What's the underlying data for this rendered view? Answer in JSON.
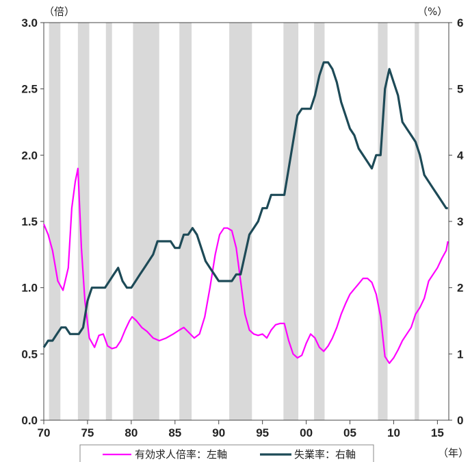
{
  "chart_data": {
    "type": "line",
    "left_unit": "（倍）",
    "right_unit": "（%）",
    "x_unit": "（年）",
    "x_range": [
      1970,
      2016.3
    ],
    "x_ticks": [
      {
        "year": 1970,
        "label": "70"
      },
      {
        "year": 1975,
        "label": "75"
      },
      {
        "year": 1980,
        "label": "80"
      },
      {
        "year": 1985,
        "label": "85"
      },
      {
        "year": 1990,
        "label": "90"
      },
      {
        "year": 1995,
        "label": "95"
      },
      {
        "year": 2000,
        "label": "00"
      },
      {
        "year": 2005,
        "label": "05"
      },
      {
        "year": 2010,
        "label": "10"
      },
      {
        "year": 2015,
        "label": "15"
      }
    ],
    "y_left": {
      "range": [
        0,
        3.0
      ],
      "ticks": [
        "0.0",
        "0.5",
        "1.0",
        "1.5",
        "2.0",
        "2.5",
        "3.0"
      ]
    },
    "y_right": {
      "range": [
        0,
        6
      ],
      "ticks": [
        "0",
        "1",
        "2",
        "3",
        "4",
        "5",
        "6"
      ]
    },
    "recessions": [
      [
        1970.6,
        1971.9
      ],
      [
        1973.9,
        1975.2
      ],
      [
        1977.1,
        1977.8
      ],
      [
        1980.2,
        1983.2
      ],
      [
        1985.5,
        1986.9
      ],
      [
        1991.2,
        1993.8
      ],
      [
        1997.4,
        1999.1
      ],
      [
        2000.9,
        2002.1
      ],
      [
        2008.2,
        2009.3
      ],
      [
        2012.4,
        2012.9
      ]
    ],
    "series": [
      {
        "name": "有効求人倍率：左軸",
        "axis": "left",
        "color": "#ff00ff",
        "x": [
          1970.0,
          1970.5,
          1971.0,
          1971.6,
          1972.2,
          1972.8,
          1973.2,
          1973.6,
          1973.9,
          1974.3,
          1974.7,
          1975.2,
          1975.8,
          1976.3,
          1976.8,
          1977.3,
          1977.8,
          1978.3,
          1978.8,
          1979.3,
          1979.8,
          1980.1,
          1980.6,
          1981.2,
          1981.8,
          1982.5,
          1983.2,
          1984.0,
          1984.8,
          1985.5,
          1986.0,
          1986.6,
          1987.2,
          1987.8,
          1988.4,
          1989.0,
          1989.6,
          1990.1,
          1990.6,
          1991.0,
          1991.5,
          1992.0,
          1992.5,
          1993.0,
          1993.5,
          1994.0,
          1994.5,
          1995.0,
          1995.5,
          1996.0,
          1996.5,
          1997.0,
          1997.5,
          1998.0,
          1998.5,
          1999.0,
          1999.5,
          2000.0,
          2000.5,
          2001.0,
          2001.5,
          2002.0,
          2002.5,
          2003.0,
          2003.5,
          2004.0,
          2004.5,
          2005.0,
          2005.5,
          2006.0,
          2006.5,
          2007.0,
          2007.5,
          2008.0,
          2008.5,
          2009.0,
          2009.5,
          2010.0,
          2010.5,
          2011.0,
          2011.5,
          2012.0,
          2012.5,
          2013.0,
          2013.5,
          2014.0,
          2014.5,
          2015.0,
          2015.5,
          2016.0,
          2016.2
        ],
        "y": [
          1.48,
          1.4,
          1.28,
          1.05,
          0.98,
          1.15,
          1.6,
          1.8,
          1.9,
          1.3,
          0.9,
          0.62,
          0.55,
          0.64,
          0.65,
          0.56,
          0.54,
          0.55,
          0.6,
          0.68,
          0.75,
          0.78,
          0.75,
          0.7,
          0.67,
          0.62,
          0.6,
          0.62,
          0.65,
          0.68,
          0.7,
          0.66,
          0.62,
          0.65,
          0.78,
          1.0,
          1.25,
          1.4,
          1.45,
          1.45,
          1.43,
          1.3,
          1.05,
          0.8,
          0.68,
          0.65,
          0.64,
          0.65,
          0.62,
          0.68,
          0.72,
          0.73,
          0.73,
          0.6,
          0.5,
          0.47,
          0.49,
          0.58,
          0.65,
          0.62,
          0.55,
          0.52,
          0.56,
          0.62,
          0.7,
          0.8,
          0.88,
          0.95,
          0.99,
          1.03,
          1.07,
          1.07,
          1.04,
          0.95,
          0.78,
          0.48,
          0.43,
          0.47,
          0.53,
          0.6,
          0.65,
          0.7,
          0.8,
          0.85,
          0.92,
          1.05,
          1.1,
          1.15,
          1.22,
          1.28,
          1.35
        ]
      },
      {
        "name": "失業率：右軸",
        "axis": "right",
        "color": "#1d4a57",
        "x": [
          1970.0,
          1970.5,
          1971.0,
          1971.5,
          1972.0,
          1972.5,
          1973.0,
          1973.5,
          1974.0,
          1974.5,
          1975.0,
          1975.5,
          1976.0,
          1976.5,
          1977.0,
          1977.5,
          1978.0,
          1978.5,
          1979.0,
          1979.5,
          1980.0,
          1980.5,
          1981.0,
          1981.5,
          1982.0,
          1982.5,
          1983.0,
          1983.5,
          1984.0,
          1984.5,
          1985.0,
          1985.5,
          1986.0,
          1986.5,
          1987.0,
          1987.5,
          1988.0,
          1988.5,
          1989.0,
          1989.5,
          1990.0,
          1990.5,
          1991.0,
          1991.5,
          1992.0,
          1992.5,
          1993.0,
          1993.5,
          1994.0,
          1994.5,
          1995.0,
          1995.5,
          1996.0,
          1996.5,
          1997.0,
          1997.5,
          1998.0,
          1998.5,
          1999.0,
          1999.5,
          2000.0,
          2000.5,
          2001.0,
          2001.5,
          2002.0,
          2002.5,
          2003.0,
          2003.5,
          2004.0,
          2004.5,
          2005.0,
          2005.5,
          2006.0,
          2006.5,
          2007.0,
          2007.5,
          2008.0,
          2008.5,
          2009.0,
          2009.5,
          2010.0,
          2010.5,
          2011.0,
          2011.5,
          2012.0,
          2012.5,
          2013.0,
          2013.5,
          2014.0,
          2014.5,
          2015.0,
          2015.5,
          2016.0,
          2016.2
        ],
        "y": [
          1.1,
          1.2,
          1.2,
          1.3,
          1.4,
          1.4,
          1.3,
          1.3,
          1.3,
          1.4,
          1.8,
          2.0,
          2.0,
          2.0,
          2.0,
          2.1,
          2.2,
          2.3,
          2.1,
          2.0,
          2.0,
          2.1,
          2.2,
          2.3,
          2.4,
          2.5,
          2.7,
          2.7,
          2.7,
          2.7,
          2.6,
          2.6,
          2.8,
          2.8,
          2.9,
          2.8,
          2.6,
          2.4,
          2.3,
          2.2,
          2.1,
          2.1,
          2.1,
          2.1,
          2.2,
          2.2,
          2.5,
          2.8,
          2.9,
          3.0,
          3.2,
          3.2,
          3.4,
          3.4,
          3.4,
          3.4,
          3.8,
          4.2,
          4.6,
          4.7,
          4.7,
          4.7,
          4.9,
          5.2,
          5.4,
          5.4,
          5.3,
          5.1,
          4.8,
          4.6,
          4.4,
          4.3,
          4.1,
          4.0,
          3.9,
          3.8,
          4.0,
          4.0,
          5.0,
          5.3,
          5.1,
          4.9,
          4.5,
          4.4,
          4.3,
          4.2,
          4.0,
          3.7,
          3.6,
          3.5,
          3.4,
          3.3,
          3.2,
          3.2
        ]
      }
    ]
  }
}
